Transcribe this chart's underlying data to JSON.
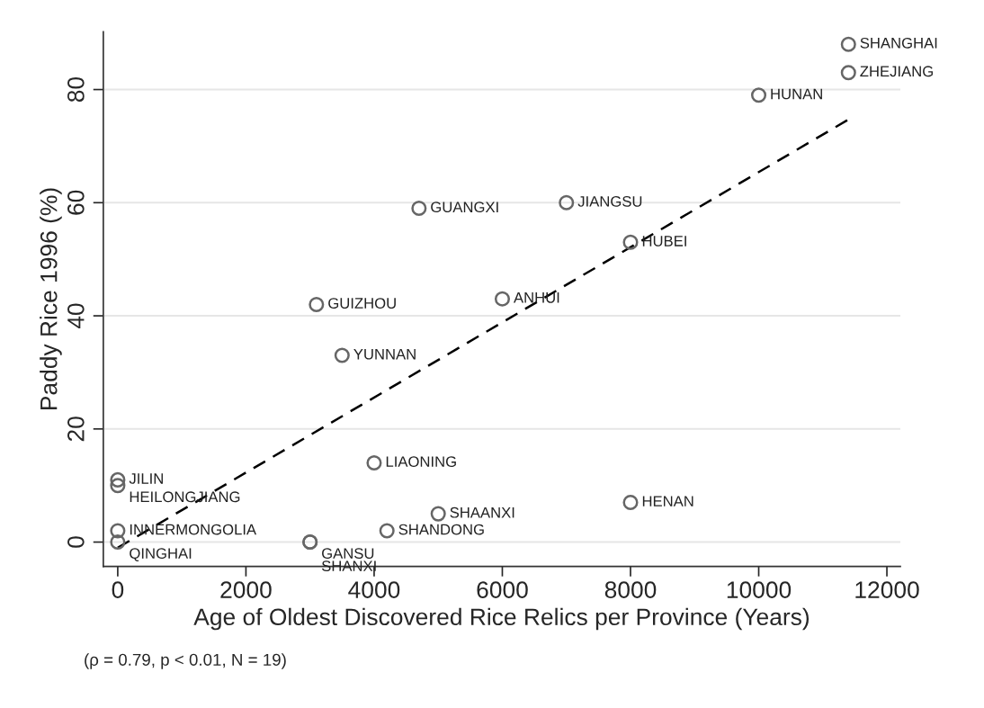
{
  "chart_data": {
    "type": "scatter",
    "xlabel": "Age of Oldest Discovered Rice Relics per Province (Years)",
    "ylabel": "Paddy Rice 1996 (%)",
    "xlim": [
      -225,
      12210
    ],
    "xticks": [
      0,
      2000,
      4000,
      6000,
      8000,
      10000,
      12000
    ],
    "ylim": [
      -4.3,
      90.2
    ],
    "yticks": [
      0,
      20,
      40,
      60,
      80
    ],
    "grid": "y",
    "marker": "circle",
    "series": [
      {
        "color": "#666666",
        "x": [
          11400,
          11400,
          10000,
          4700,
          7000,
          8000,
          6000,
          3100,
          3500,
          4000,
          0,
          0,
          5000,
          8000,
          0,
          4200,
          0,
          3000,
          3000
        ],
        "values": [
          88,
          83,
          79,
          59,
          60,
          53,
          43,
          42,
          33,
          14,
          11,
          10,
          5,
          7,
          2,
          2,
          0,
          0,
          0
        ]
      },
      {
        "type": "line",
        "color": "#000000",
        "line_style": "dashed",
        "marker": "none",
        "x": [
          0,
          11400
        ],
        "values": [
          -1,
          74.7
        ]
      }
    ],
    "annotations": [
      {
        "text": "SHANGHAI",
        "x": 11400,
        "y": 88
      },
      {
        "text": "ZHEJIANG",
        "x": 11400,
        "y": 83
      },
      {
        "text": "HUNAN",
        "x": 10000,
        "y": 79
      },
      {
        "text": "GUANGXI",
        "x": 4700,
        "y": 59
      },
      {
        "text": "JIANGSU",
        "x": 7000,
        "y": 60
      },
      {
        "text": "HUBEI",
        "x": 8000,
        "y": 53
      },
      {
        "text": "ANHUI",
        "x": 6000,
        "y": 43
      },
      {
        "text": "GUIZHOU",
        "x": 3100,
        "y": 42
      },
      {
        "text": "YUNNAN",
        "x": 3500,
        "y": 33
      },
      {
        "text": "LIAONING",
        "x": 4000,
        "y": 14
      },
      {
        "text": "JILIN",
        "x": 0,
        "y": 11
      },
      {
        "text": "HEILONGJIANG",
        "x": 0,
        "y": 10
      },
      {
        "text": "SHAANXI",
        "x": 5000,
        "y": 5
      },
      {
        "text": "HENAN",
        "x": 8000,
        "y": 7
      },
      {
        "text": "INNERMONGOLIA",
        "x": 0,
        "y": 2
      },
      {
        "text": "SHANDONG",
        "x": 4200,
        "y": 2
      },
      {
        "text": "QINGHAI",
        "x": 0,
        "y": 0
      },
      {
        "text": "GANSU",
        "x": 3000,
        "y": 0
      },
      {
        "text": "SHANXI",
        "x": 3000,
        "y": 0
      },
      "(ρ = 0.79, p < 0.01, N = 19)"
    ]
  }
}
